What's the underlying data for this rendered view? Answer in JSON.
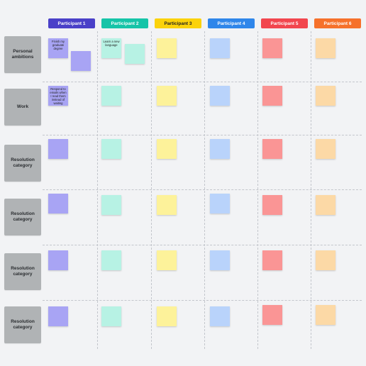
{
  "columns": [
    {
      "label": "Participant 1",
      "color": "#4a40c8"
    },
    {
      "label": "Participant 2",
      "color": "#16c4a8"
    },
    {
      "label": "Participant 3",
      "color": "#fbd20b"
    },
    {
      "label": "Participant 4",
      "color": "#2f86ea"
    },
    {
      "label": "Participant 5",
      "color": "#f2464e"
    },
    {
      "label": "Participant 6",
      "color": "#f6712b"
    }
  ],
  "rows": [
    {
      "label": "Personal ambitions"
    },
    {
      "label": "Work"
    },
    {
      "label": "Resolution category"
    },
    {
      "label": "Resolution category"
    },
    {
      "label": "Resolution category"
    },
    {
      "label": "Resolution category"
    }
  ],
  "notes": {
    "r1_p1_a": "Finish my graduate degree",
    "r1_p2_a": "Learn a new language",
    "r2_p1": "Respond to emails when I read them instead of waiting"
  },
  "sticky_colors": {
    "participant1": "#a8a4f4",
    "participant2": "#b7f2e4",
    "participant3": "#fdf29a",
    "participant4": "#b9d3fb",
    "participant5": "#fa9595",
    "participant6": "#fcd9a6"
  }
}
